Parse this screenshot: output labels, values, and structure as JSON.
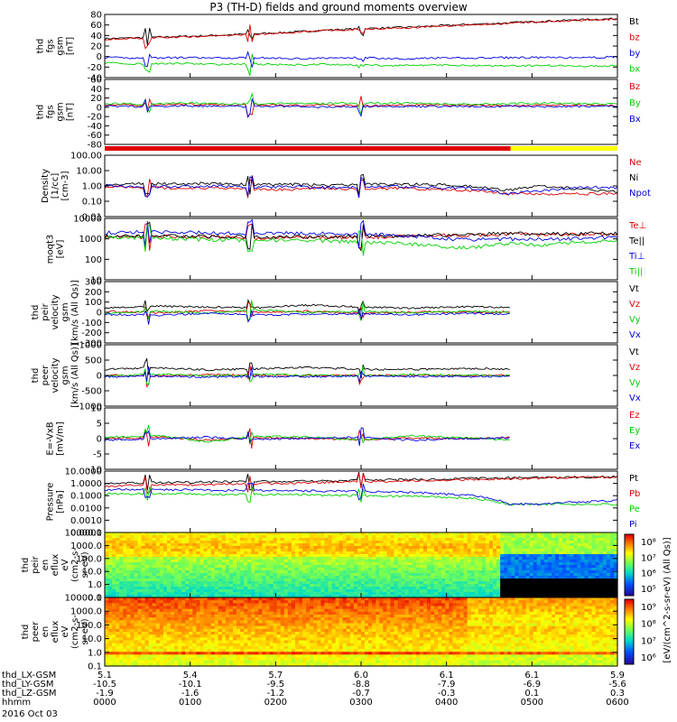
{
  "title": "P3 (TH-D) fields and ground moments overview",
  "colors": {
    "black": "#000000",
    "red": "#e00000",
    "green": "#00d000",
    "blue": "#0000e0",
    "yellow": "#ffff00"
  },
  "chart_data": {
    "type": "line",
    "x_time_ticks": [
      "0000",
      "0100",
      "0200",
      "0300",
      "0400",
      "0500",
      "0600"
    ],
    "date_label": "2016 Oct 03",
    "ephemeris": [
      {
        "label": "thd_LX-GSM",
        "values": [
          "5.1",
          "5.4",
          "5.7",
          "6.0",
          "6.1",
          "6.1",
          "5.9"
        ]
      },
      {
        "label": "thd_LY-GSM",
        "values": [
          "-10.5",
          "-10.1",
          "-9.5",
          "-8.8",
          "-7.9",
          "-6.9",
          "-5.6"
        ]
      },
      {
        "label": "thd_LZ-GSM",
        "values": [
          "-1.9",
          "-1.6",
          "-1.2",
          "-0.7",
          "-0.3",
          "0.1",
          "0.3"
        ]
      },
      {
        "label": "hhmm",
        "values": [
          "0000",
          "0100",
          "0200",
          "0300",
          "0400",
          "0500",
          "0600"
        ]
      }
    ],
    "mode_bar": {
      "red_until_hour": 4.75,
      "colors": [
        "red",
        "yellow"
      ]
    },
    "panels": [
      {
        "id": "fgs-magnitude",
        "ylabel": [
          "thd",
          "fgs",
          "gsm",
          "[nT]"
        ],
        "scale": "linear",
        "ylim": [
          -40,
          80
        ],
        "ticks": [
          "80",
          "60",
          "40",
          "20",
          "0",
          "-20",
          "-40"
        ],
        "series": [
          {
            "name": "Bt",
            "color": "black",
            "values": [
              34,
              36,
              38,
              40,
              43,
              46,
              50,
              53,
              55,
              58,
              61,
              64,
              67,
              70,
              72
            ]
          },
          {
            "name": "bz",
            "color": "red",
            "values": [
              33,
              35,
              37,
              39,
              42,
              45,
              49,
              52,
              54,
              57,
              60,
              63,
              66,
              69,
              71
            ]
          },
          {
            "name": "by",
            "color": "blue",
            "values": [
              -2,
              -3,
              -2,
              -3,
              -2,
              -4,
              -3,
              -2,
              -4,
              -3,
              -3,
              -2,
              -2,
              -2,
              -1
            ]
          },
          {
            "name": "bx",
            "color": "green",
            "values": [
              -12,
              -14,
              -13,
              -15,
              -14,
              -16,
              -15,
              -16,
              -17,
              -16,
              -17,
              -18,
              -17,
              -18,
              -18
            ]
          }
        ]
      },
      {
        "id": "fgs-components",
        "ylabel": [
          "thd",
          "fgs",
          "gsm",
          "[nT]"
        ],
        "scale": "linear",
        "ylim": [
          -90,
          60
        ],
        "ticks": [
          "60",
          "40",
          "20",
          "0",
          "-20",
          "-40",
          "-60",
          "-80"
        ],
        "series": [
          {
            "name": "Bz",
            "color": "red",
            "values": [
              2,
              0,
              3,
              1,
              2,
              0,
              1,
              -1,
              0,
              1,
              0,
              -1,
              0,
              1,
              0
            ]
          },
          {
            "name": "By",
            "color": "green",
            "values": [
              5,
              3,
              6,
              4,
              3,
              5,
              4,
              6,
              5,
              4,
              3,
              4,
              5,
              4,
              3
            ]
          },
          {
            "name": "Bx",
            "color": "blue",
            "values": [
              -2,
              -3,
              -1,
              -2,
              -3,
              -2,
              -4,
              -3,
              -2,
              -3,
              -2,
              -2,
              -3,
              -2,
              -2
            ]
          }
        ]
      },
      {
        "id": "density",
        "ylabel": [
          "Density",
          "[1/cc]",
          "[cm-3]"
        ],
        "scale": "log",
        "ylim": [
          0.01,
          100
        ],
        "ticks": [
          "100.00",
          "10.00",
          "1.00",
          "0.10",
          "0.01"
        ],
        "series": [
          {
            "name": "Ne",
            "color": "red",
            "values": [
              0.9,
              0.8,
              0.7,
              0.7,
              0.6,
              0.6,
              0.7,
              0.6,
              0.7,
              0.6,
              0.5,
              0.3,
              0.3,
              0.3,
              0.3
            ]
          },
          {
            "name": "Ni",
            "color": "black",
            "values": [
              1.2,
              1.4,
              1.3,
              1.5,
              1.2,
              1.3,
              1.1,
              1.2,
              1.3,
              1.2,
              0.9,
              0.5,
              1.0,
              0.6,
              0.4
            ]
          },
          {
            "name": "Npot",
            "color": "blue",
            "values": [
              1.0,
              0.9,
              0.9,
              1.0,
              0.8,
              0.9,
              0.8,
              0.8,
              0.9,
              0.8,
              0.7,
              0.3,
              0.5,
              0.8,
              0.8
            ]
          }
        ]
      },
      {
        "id": "temperature",
        "ylabel": [
          "moqt3",
          "[eV]"
        ],
        "scale": "log",
        "ylim": [
          10,
          10000
        ],
        "ticks": [
          "10000",
          "1000",
          "100",
          "10"
        ],
        "series": [
          {
            "name": "Te⊥",
            "color": "red",
            "values": [
              1300,
              1200,
              1300,
              1250,
              1100,
              1200,
              1150,
              1200,
              1300,
              1400,
              1500,
              1700,
              1600,
              1700,
              1700
            ]
          },
          {
            "name": "Te||",
            "color": "black",
            "values": [
              1400,
              1300,
              1400,
              1300,
              1200,
              1300,
              1250,
              1300,
              1400,
              1500,
              1600,
              1800,
              1700,
              1800,
              1800
            ]
          },
          {
            "name": "Ti⊥",
            "color": "blue",
            "values": [
              2000,
              2200,
              2100,
              1900,
              1800,
              1900,
              1800,
              1700,
              1500,
              1100,
              900,
              1000,
              900,
              1100,
              1200
            ]
          },
          {
            "name": "Ti||",
            "color": "green",
            "values": [
              1200,
              1100,
              1000,
              900,
              850,
              900,
              800,
              700,
              600,
              450,
              350,
              600,
              500,
              700,
              800
            ]
          }
        ]
      },
      {
        "id": "peir-velocity",
        "ylabel": [
          "thd",
          "peir",
          "velocity",
          "gsm",
          "[km/s (All Qs)]"
        ],
        "scale": "linear",
        "ylim": [
          -300,
          300
        ],
        "ticks": [
          "300",
          "200",
          "100",
          "0",
          "-100",
          "-200",
          "-300"
        ],
        "series": [
          {
            "name": "Vt",
            "color": "black",
            "values": [
              40,
              60,
              50,
              45,
              70,
              50,
              40,
              55,
              45,
              40,
              35
            ]
          },
          {
            "name": "Vz",
            "color": "red",
            "values": [
              10,
              -5,
              15,
              0,
              10,
              -10,
              5,
              0,
              5,
              0,
              5
            ]
          },
          {
            "name": "Vy",
            "color": "green",
            "values": [
              -10,
              10,
              -5,
              20,
              0,
              10,
              -5,
              10,
              0,
              5,
              -5
            ]
          },
          {
            "name": "Vx",
            "color": "blue",
            "values": [
              -20,
              -30,
              -10,
              -25,
              -20,
              -15,
              -25,
              -10,
              -20,
              -15,
              -20
            ]
          }
        ]
      },
      {
        "id": "peer-velocity",
        "ylabel": [
          "thd",
          "peer",
          "velocity",
          "gsm",
          "[km/s (All Qs)]"
        ],
        "scale": "linear",
        "ylim": [
          -1000,
          1000
        ],
        "ticks": [
          "1000",
          "500",
          "0",
          "-500",
          "-1000"
        ],
        "series": [
          {
            "name": "Vt",
            "color": "black",
            "values": [
              200,
              250,
              180,
              220,
              260,
              200,
              190,
              230,
              210,
              200,
              180
            ]
          },
          {
            "name": "Vz",
            "color": "red",
            "values": [
              10,
              -20,
              30,
              0,
              -10,
              20,
              0,
              -10,
              10,
              0,
              5
            ]
          },
          {
            "name": "Vy",
            "color": "green",
            "values": [
              -20,
              40,
              -10,
              30,
              10,
              -20,
              30,
              10,
              -10,
              20,
              0
            ]
          },
          {
            "name": "Vx",
            "color": "blue",
            "values": [
              -40,
              -20,
              -50,
              -30,
              -40,
              -20,
              -30,
              -40,
              -20,
              -30,
              -20
            ]
          }
        ]
      },
      {
        "id": "e-field",
        "ylabel": [
          "E=-VxB",
          "[mV/m]"
        ],
        "scale": "linear",
        "ylim": [
          -10,
          10
        ],
        "ticks": [
          "10",
          "5",
          "0",
          "-5",
          "-10"
        ],
        "series": [
          {
            "name": "Ez",
            "color": "red",
            "values": [
              0,
              0.5,
              -0.5,
              0.3,
              0,
              -0.3,
              0.2,
              0,
              0.3,
              0,
              0
            ]
          },
          {
            "name": "Ey",
            "color": "green",
            "values": [
              0.5,
              1,
              -1,
              0.8,
              0.5,
              -0.5,
              1,
              0.3,
              -0.5,
              0.5,
              0
            ]
          },
          {
            "name": "Ex",
            "color": "blue",
            "values": [
              -0.5,
              0,
              0.5,
              -0.3,
              0.2,
              0.5,
              -0.5,
              0,
              0.3,
              0,
              0
            ]
          }
        ]
      },
      {
        "id": "pressure",
        "ylabel": [
          "Pressure",
          "[nPa]"
        ],
        "scale": "log",
        "ylim": [
          0.0001,
          10
        ],
        "ticks": [
          "10.0000",
          "1.0000",
          "0.1000",
          "0.0100",
          "0.0010",
          "0.0001"
        ],
        "series": [
          {
            "name": "Pt",
            "color": "black",
            "values": [
              1.0,
              1.1,
              1.2,
              1.3,
              1.4,
              1.5,
              1.6,
              1.8,
              2.0,
              2.2,
              2.5,
              2.8,
              3.0,
              3.2,
              3.4
            ]
          },
          {
            "name": "Pb",
            "color": "red",
            "values": [
              0.6,
              0.7,
              0.75,
              0.8,
              0.9,
              1.0,
              1.2,
              1.4,
              1.5,
              1.7,
              2.0,
              2.4,
              2.7,
              3.0,
              3.2
            ]
          },
          {
            "name": "Pe",
            "color": "green",
            "values": [
              0.15,
              0.14,
              0.15,
              0.13,
              0.12,
              0.13,
              0.11,
              0.1,
              0.09,
              0.08,
              0.06,
              0.02,
              0.02,
              0.02,
              0.02
            ]
          },
          {
            "name": "Pi",
            "color": "blue",
            "values": [
              0.3,
              0.32,
              0.3,
              0.28,
              0.27,
              0.26,
              0.24,
              0.22,
              0.2,
              0.15,
              0.1,
              0.02,
              0.02,
              0.03,
              0.04
            ]
          }
        ]
      },
      {
        "id": "peir-spectrogram",
        "type": "heatmap",
        "ylabel": [
          "thd",
          "peir",
          "en",
          "eflux",
          "eV",
          "(cm2-s-",
          "sr-eV)"
        ],
        "scale": "log",
        "ylim": [
          0.1,
          10000
        ],
        "ticks": [
          "10000.0",
          "1000.0",
          "100.0",
          "10.0",
          "1.0",
          "0.1"
        ]
      },
      {
        "id": "peer-spectrogram",
        "type": "heatmap",
        "ylabel": [
          "thd",
          "peer",
          "en",
          "eflux",
          "eV",
          "(cm2-s-",
          "sr-eV)"
        ],
        "scale": "log",
        "ylim": [
          0.1,
          10000
        ],
        "ticks": [
          "10000.0",
          "1000.0",
          "100.0",
          "10.0",
          "1.0",
          "0.1"
        ]
      }
    ],
    "colorbar": {
      "label": "[eV/(cm^2-s-sr-eV) (All Qs)]",
      "top_ticks": [
        "10⁸",
        "10⁷",
        "10⁶",
        "10⁵"
      ],
      "bottom_ticks": [
        "10⁹",
        "10⁸",
        "10⁷",
        "10⁶"
      ]
    }
  }
}
